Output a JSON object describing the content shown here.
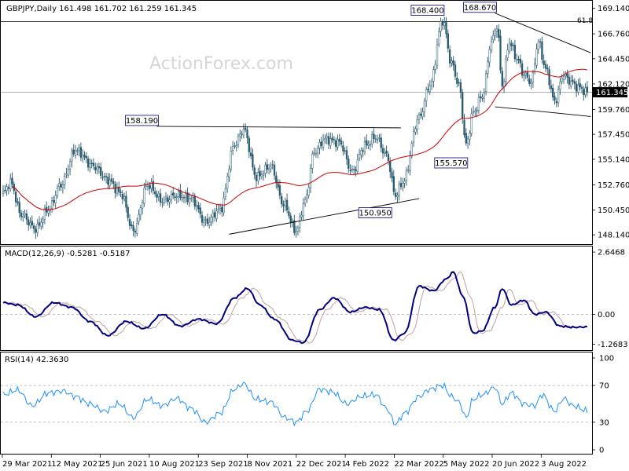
{
  "header": {
    "symbol_line": "GBPJPY,Daily  161.498 161.702 161.259 161.345"
  },
  "watermark": "ActionForex.com",
  "colors": {
    "candle": "#2a5a6e",
    "sma": "#d00000",
    "macd_line": "#000080",
    "macd_signal": "#c0a0a0",
    "rsi_line": "#1e90ff",
    "trend": "#000000",
    "hline": "#808080"
  },
  "chart_data": [
    {
      "type": "candlestick",
      "title": "GBPJPY,Daily",
      "ohlc_last": {
        "open": 161.498,
        "high": 161.702,
        "low": 161.259,
        "close": 161.345
      },
      "ylim": [
        147.5,
        169.6
      ],
      "y_ticks": [
        "169.140",
        "166.760",
        "164.450",
        "162.120",
        "159.760",
        "157.450",
        "155.140",
        "152.760",
        "150.450",
        "148.140"
      ],
      "x_ticks": [
        "29 Mar 2021",
        "12 May 2021",
        "25 Jun 2021",
        "10 Aug 2021",
        "23 Sep 2021",
        "8 Nov 2021",
        "22 Dec 2021",
        "4 Feb 2022",
        "22 Mar 2022",
        "5 May 2022",
        "20 Jun 2022",
        "3 Aug 2022"
      ],
      "current_price": "161.345",
      "fib_label": "61.8",
      "fib_level": 167.9,
      "price_labels": [
        {
          "text": "158.190",
          "idx": 85
        },
        {
          "text": "168.400",
          "idx": 243
        },
        {
          "text": "168.670",
          "idx": 272
        },
        {
          "text": "155.570",
          "idx": 256
        },
        {
          "text": "150.950",
          "idx": 214
        }
      ],
      "trendlines": [
        {
          "i1": 85,
          "p1": 158.19,
          "i2": 220,
          "p2": 158.05
        },
        {
          "i1": 125,
          "p1": 148.2,
          "i2": 230,
          "p2": 151.5
        },
        {
          "i1": 272,
          "p1": 168.67,
          "i2": 325,
          "p2": 165.0
        },
        {
          "i1": 272,
          "p1": 160.0,
          "i2": 325,
          "p2": 159.1
        }
      ],
      "anchors": [
        [
          0,
          152.0
        ],
        [
          4,
          153.0
        ],
        [
          10,
          150.0
        ],
        [
          18,
          148.7
        ],
        [
          25,
          150.5
        ],
        [
          32,
          152.8
        ],
        [
          40,
          156.0
        ],
        [
          50,
          154.5
        ],
        [
          58,
          153.2
        ],
        [
          65,
          152.0
        ],
        [
          72,
          148.5
        ],
        [
          80,
          152.8
        ],
        [
          88,
          151.3
        ],
        [
          96,
          151.8
        ],
        [
          104,
          151.5
        ],
        [
          112,
          149.3
        ],
        [
          120,
          150.5
        ],
        [
          128,
          156.5
        ],
        [
          133,
          157.9
        ],
        [
          140,
          153.5
        ],
        [
          148,
          154.5
        ],
        [
          155,
          151.0
        ],
        [
          162,
          148.5
        ],
        [
          167,
          151.3
        ],
        [
          172,
          155.8
        ],
        [
          178,
          157.0
        ],
        [
          186,
          156.7
        ],
        [
          193,
          154.0
        ],
        [
          200,
          156.4
        ],
        [
          206,
          157.2
        ],
        [
          212,
          155.5
        ],
        [
          217,
          151.8
        ],
        [
          221,
          153.0
        ],
        [
          230,
          159.0
        ],
        [
          236,
          162.0
        ],
        [
          243,
          168.0
        ],
        [
          248,
          164.0
        ],
        [
          252,
          162.0
        ],
        [
          256,
          156.5
        ],
        [
          260,
          159.5
        ],
        [
          265,
          161.0
        ],
        [
          270,
          166.0
        ],
        [
          273,
          167.5
        ],
        [
          276,
          162.0
        ],
        [
          280,
          166.0
        ],
        [
          284,
          164.5
        ],
        [
          288,
          163.0
        ],
        [
          292,
          162.3
        ],
        [
          296,
          166.0
        ],
        [
          300,
          163.5
        ],
        [
          305,
          160.5
        ],
        [
          310,
          163.0
        ],
        [
          313,
          162.4
        ],
        [
          318,
          161.8
        ],
        [
          323,
          161.35
        ]
      ],
      "sma_period": 55
    },
    {
      "type": "line",
      "title": "MACD(12,26,9) -0.5281 -0.5187",
      "values_last": [
        -0.5281,
        -0.5187
      ],
      "ylim": [
        -1.45,
        2.75
      ],
      "y_ticks": [
        "2.6468",
        "0.00",
        "-1.2683"
      ],
      "series": [
        {
          "name": "MACD",
          "anchors": [
            [
              0,
              0.5
            ],
            [
              8,
              0.4
            ],
            [
              18,
              -0.1
            ],
            [
              28,
              0.5
            ],
            [
              38,
              0.3
            ],
            [
              48,
              -0.3
            ],
            [
              58,
              -0.9
            ],
            [
              68,
              -0.3
            ],
            [
              78,
              -0.6
            ],
            [
              88,
              0.0
            ],
            [
              98,
              -0.5
            ],
            [
              108,
              -0.2
            ],
            [
              118,
              -0.4
            ],
            [
              128,
              0.7
            ],
            [
              135,
              1.1
            ],
            [
              142,
              0.4
            ],
            [
              150,
              -0.2
            ],
            [
              160,
              -1.1
            ],
            [
              166,
              -1.2
            ],
            [
              175,
              0.2
            ],
            [
              183,
              0.7
            ],
            [
              192,
              0.1
            ],
            [
              200,
              0.3
            ],
            [
              208,
              0.2
            ],
            [
              216,
              -1.1
            ],
            [
              222,
              -0.8
            ],
            [
              230,
              1.2
            ],
            [
              238,
              1.0
            ],
            [
              245,
              1.5
            ],
            [
              249,
              1.8
            ],
            [
              254,
              0.8
            ],
            [
              260,
              -0.8
            ],
            [
              265,
              -0.7
            ],
            [
              272,
              0.3
            ],
            [
              276,
              1.1
            ],
            [
              281,
              0.4
            ],
            [
              288,
              0.6
            ],
            [
              294,
              0.0
            ],
            [
              300,
              0.1
            ],
            [
              308,
              -0.5
            ],
            [
              315,
              -0.55
            ],
            [
              323,
              -0.53
            ]
          ]
        },
        {
          "name": "Signal",
          "lag": 4
        }
      ]
    },
    {
      "type": "line",
      "title": "RSI(14) 42.3630",
      "values_last": [
        42.363
      ],
      "ylim": [
        0,
        100
      ],
      "y_ticks": [
        "100",
        "70",
        "30",
        "0"
      ],
      "levels": [
        70,
        30
      ],
      "series": [
        {
          "name": "RSI",
          "anchors": [
            [
              0,
              60
            ],
            [
              8,
              65
            ],
            [
              16,
              48
            ],
            [
              25,
              62
            ],
            [
              33,
              64
            ],
            [
              40,
              58
            ],
            [
              48,
              50
            ],
            [
              56,
              42
            ],
            [
              64,
              50
            ],
            [
              72,
              35
            ],
            [
              80,
              55
            ],
            [
              88,
              48
            ],
            [
              96,
              56
            ],
            [
              104,
              45
            ],
            [
              112,
              30
            ],
            [
              120,
              40
            ],
            [
              128,
              66
            ],
            [
              133,
              72
            ],
            [
              140,
              55
            ],
            [
              148,
              52
            ],
            [
              156,
              35
            ],
            [
              162,
              30
            ],
            [
              168,
              42
            ],
            [
              175,
              66
            ],
            [
              182,
              63
            ],
            [
              190,
              50
            ],
            [
              198,
              58
            ],
            [
              206,
              60
            ],
            [
              212,
              45
            ],
            [
              217,
              28
            ],
            [
              222,
              40
            ],
            [
              230,
              58
            ],
            [
              236,
              66
            ],
            [
              243,
              70
            ],
            [
              248,
              58
            ],
            [
              252,
              52
            ],
            [
              256,
              35
            ],
            [
              260,
              55
            ],
            [
              265,
              60
            ],
            [
              272,
              68
            ],
            [
              276,
              50
            ],
            [
              281,
              62
            ],
            [
              288,
              50
            ],
            [
              294,
              48
            ],
            [
              298,
              60
            ],
            [
              305,
              42
            ],
            [
              310,
              56
            ],
            [
              315,
              48
            ],
            [
              323,
              42.4
            ]
          ]
        }
      ]
    }
  ]
}
